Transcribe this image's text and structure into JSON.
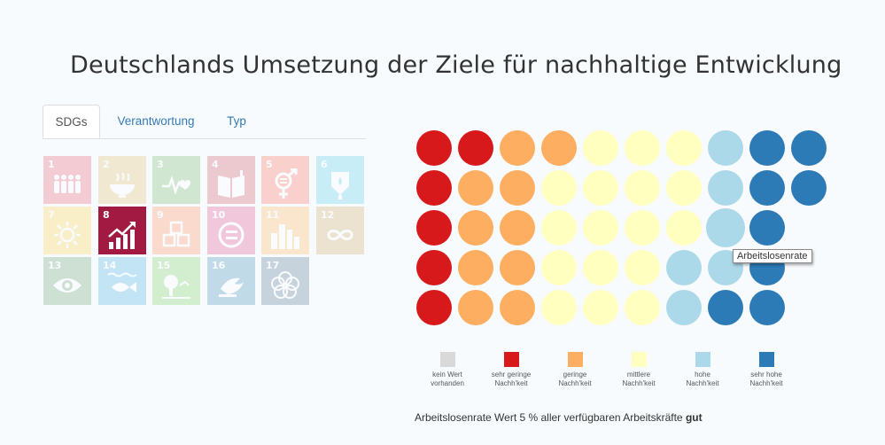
{
  "page": {
    "title": "Deutschlands Umsetzung der Ziele für nachhaltige Entwicklung"
  },
  "tabs": [
    {
      "label": "SDGs",
      "active": true
    },
    {
      "label": "Verantwortung",
      "active": false
    },
    {
      "label": "Typ",
      "active": false
    }
  ],
  "sdg_tiles": [
    {
      "number": "1",
      "icon": "people-icon",
      "color": "#e5243b",
      "selected": false
    },
    {
      "number": "2",
      "icon": "bowl-icon",
      "color": "#dda63a",
      "selected": false
    },
    {
      "number": "3",
      "icon": "heartbeat-icon",
      "color": "#4c9f38",
      "selected": false
    },
    {
      "number": "4",
      "icon": "book-icon",
      "color": "#c5192d",
      "selected": false
    },
    {
      "number": "5",
      "icon": "gender-icon",
      "color": "#ff3a21",
      "selected": false
    },
    {
      "number": "6",
      "icon": "water-drop-icon",
      "color": "#26bde2",
      "selected": false
    },
    {
      "number": "7",
      "icon": "sun-icon",
      "color": "#fcc30b",
      "selected": false
    },
    {
      "number": "8",
      "icon": "growth-chart-icon",
      "color": "#a21942",
      "selected": true
    },
    {
      "number": "9",
      "icon": "cubes-icon",
      "color": "#fd6925",
      "selected": false
    },
    {
      "number": "10",
      "icon": "equality-icon",
      "color": "#dd1367",
      "selected": false
    },
    {
      "number": "11",
      "icon": "city-icon",
      "color": "#fd9d24",
      "selected": false
    },
    {
      "number": "12",
      "icon": "infinity-icon",
      "color": "#bf8b2e",
      "selected": false
    },
    {
      "number": "13",
      "icon": "eye-globe-icon",
      "color": "#3f7e44",
      "selected": false
    },
    {
      "number": "14",
      "icon": "fish-icon",
      "color": "#0a97d9",
      "selected": false
    },
    {
      "number": "15",
      "icon": "tree-icon",
      "color": "#56c02b",
      "selected": false
    },
    {
      "number": "16",
      "icon": "dove-icon",
      "color": "#00689d",
      "selected": false
    },
    {
      "number": "17",
      "icon": "flower-icon",
      "color": "#19486a",
      "selected": false
    }
  ],
  "indicator_grid": {
    "rows": [
      [
        "sehr_gering",
        "sehr_gering",
        "gering",
        "gering",
        "mittel",
        "mittel",
        "mittel",
        "hoch",
        "sehr_hoch",
        "sehr_hoch"
      ],
      [
        "sehr_gering",
        "gering",
        "gering",
        "mittel",
        "mittel",
        "mittel",
        "mittel",
        "hoch",
        "sehr_hoch",
        "sehr_hoch"
      ],
      [
        "sehr_gering",
        "gering",
        "gering",
        "mittel",
        "mittel",
        "mittel",
        "mittel",
        "hoch_active",
        "sehr_hoch"
      ],
      [
        "sehr_gering",
        "gering",
        "gering",
        "mittel",
        "mittel",
        "mittel",
        "hoch",
        "hoch",
        "sehr_hoch"
      ],
      [
        "sehr_gering",
        "gering",
        "gering",
        "mittel",
        "mittel",
        "mittel",
        "hoch",
        "sehr_hoch",
        "sehr_hoch"
      ]
    ],
    "colors": {
      "sehr_gering": "#d7191c",
      "gering": "#fdae61",
      "mittel": "#ffffbf",
      "hoch": "#abd9e9",
      "hoch_active": "#abd9e9",
      "sehr_hoch": "#2c7bb6"
    }
  },
  "tooltip": {
    "text": "Arbeitslosenrate"
  },
  "legend": [
    {
      "line1": "kein Wert",
      "line2": "vorhanden",
      "color": "#d9d9d9"
    },
    {
      "line1": "sehr geringe",
      "line2": "Nachh'keit",
      "color": "#d7191c"
    },
    {
      "line1": "geringe",
      "line2": "Nachh'keit",
      "color": "#fdae61"
    },
    {
      "line1": "mittlere",
      "line2": "Nachh'keit",
      "color": "#ffffbf"
    },
    {
      "line1": "hohe",
      "line2": "Nachh'keit",
      "color": "#abd9e9"
    },
    {
      "line1": "sehr hohe",
      "line2": "Nachh'keit",
      "color": "#2c7bb6"
    }
  ],
  "status": {
    "text": "Arbeitslosenrate Wert 5 % aller verfügbaren Arbeitskräfte",
    "rating": "gut"
  }
}
